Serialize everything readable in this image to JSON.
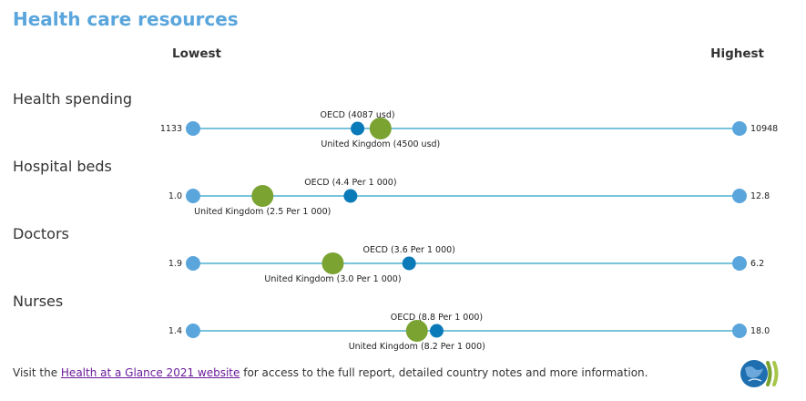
{
  "title": "Health care resources",
  "scale": {
    "low_label": "Lowest",
    "high_label": "Highest"
  },
  "colors": {
    "title": "#5aa6dc",
    "end_dot": "#5aa6dc",
    "oecd_dot": "#0a7ab8",
    "country_dot": "#7aa332",
    "line": "#29a0c8"
  },
  "chart_data": {
    "type": "dot-range",
    "title": "Health care resources",
    "indicators": [
      {
        "name": "Health spending",
        "min": 1133,
        "max": 10948,
        "min_label": "1133",
        "max_label": "10948",
        "oecd": 4087,
        "oecd_label": "OECD (4087 usd)",
        "country": 4500,
        "country_label": "United Kingdom (4500 usd)"
      },
      {
        "name": "Hospital beds",
        "min": 1.0,
        "max": 12.8,
        "min_label": "1.0",
        "max_label": "12.8",
        "oecd": 4.4,
        "oecd_label": "OECD (4.4 Per 1 000)",
        "country": 2.5,
        "country_label": "United Kingdom (2.5 Per 1 000)"
      },
      {
        "name": "Doctors",
        "min": 1.9,
        "max": 6.2,
        "min_label": "1.9",
        "max_label": "6.2",
        "oecd": 3.6,
        "oecd_label": "OECD (3.6 Per 1 000)",
        "country": 3.0,
        "country_label": "United Kingdom (3.0 Per 1 000)"
      },
      {
        "name": "Nurses",
        "min": 1.4,
        "max": 18.0,
        "min_label": "1.4",
        "max_label": "18.0",
        "oecd": 8.8,
        "oecd_label": "OECD (8.8 Per 1 000)",
        "country": 8.2,
        "country_label": "United Kingdom (8.2 Per 1 000)"
      }
    ]
  },
  "footer": {
    "prefix": "Visit the ",
    "link_text": "Health at a Glance 2021 website",
    "suffix": " for access to the full report, detailed country notes and more information."
  }
}
